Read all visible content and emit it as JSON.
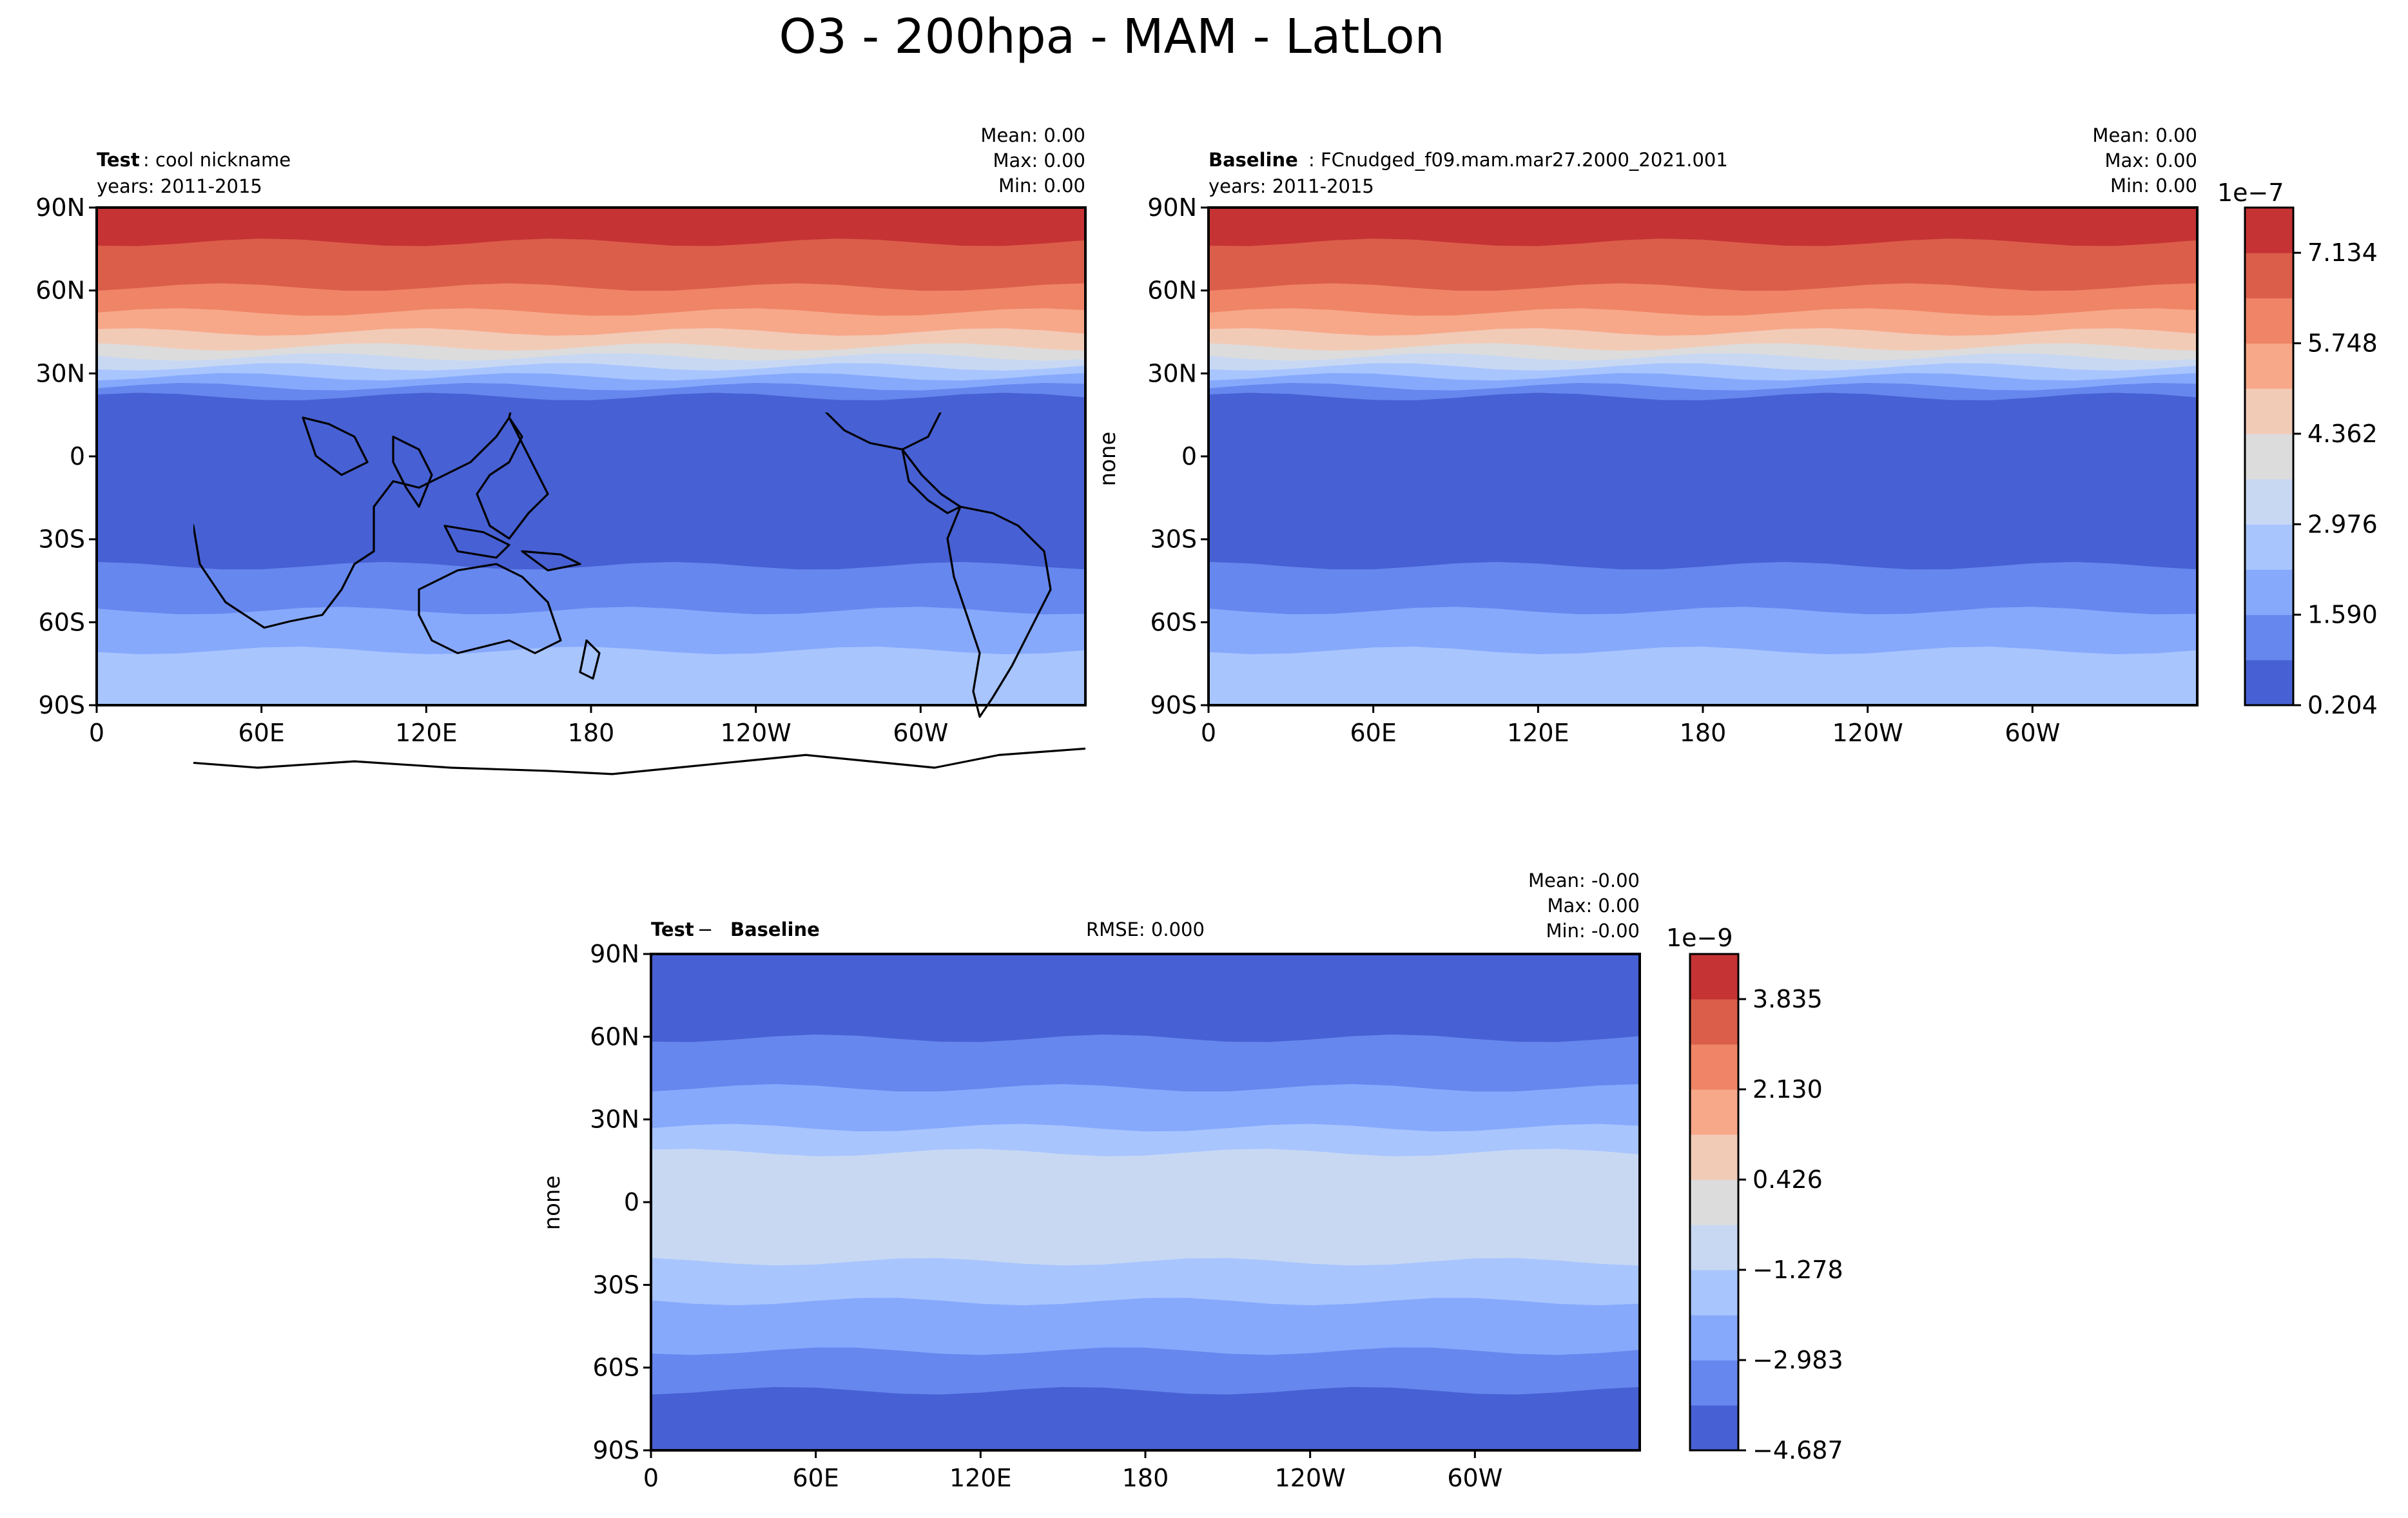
{
  "figure": {
    "title": "O3 - 200hpa - MAM - LatLon"
  },
  "panels": {
    "test": {
      "label_bold": "Test",
      "label_rest": ": cool nickname",
      "years": "years: 2011-2015",
      "stats": {
        "mean": "Mean:  0.00",
        "max": "Max:  0.00",
        "min": "Min:  0.00"
      },
      "ylabel": ""
    },
    "baseline": {
      "label_bold": "Baseline",
      "label_rest": ": FCnudged_f09.mam.mar27.2000_2021.001",
      "years": "years: 2011-2015",
      "stats": {
        "mean": "Mean:  0.00",
        "max": "Max:  0.00",
        "min": "Min:  0.00"
      },
      "ylabel": "none"
    },
    "diff": {
      "label_bold_a": "Test",
      "label_sep": " − ",
      "label_bold_b": "Baseline",
      "rmse": "RMSE: 0.000",
      "stats": {
        "mean": "Mean: -0.00",
        "max": "Max:  0.00",
        "min": "Min: -0.00"
      },
      "ylabel": "none"
    }
  },
  "axis": {
    "lat_ticks": [
      "90N",
      "60N",
      "30N",
      "0",
      "30S",
      "60S",
      "90S"
    ],
    "lon_ticks": [
      "0",
      "60E",
      "120E",
      "180",
      "120W",
      "60W"
    ]
  },
  "colorbars": {
    "main": {
      "exponent": "1e−7",
      "ticks": [
        "7.134",
        "5.748",
        "4.362",
        "2.976",
        "1.590",
        "0.204"
      ],
      "colors": [
        "#4760d3",
        "#6687ee",
        "#87a9fc",
        "#a8c5fe",
        "#c8d8f3",
        "#dcdcdc",
        "#f2cbb7",
        "#f7a889",
        "#ef8466",
        "#db5e4a",
        "#c53334"
      ]
    },
    "diff": {
      "exponent": "1e−9",
      "ticks": [
        "3.835",
        "2.130",
        "0.426",
        "−1.278",
        "−2.983",
        "−4.687"
      ],
      "colors": [
        "#4760d3",
        "#6687ee",
        "#87a9fc",
        "#a8c5fe",
        "#c8d8f3",
        "#dcdcdc",
        "#f2cbb7",
        "#f7a889",
        "#ef8466",
        "#db5e4a",
        "#c53334"
      ]
    }
  },
  "chart_data": [
    {
      "type": "heatmap",
      "title": "Test: cool nickname",
      "x_ticks": [
        "0",
        "60E",
        "120E",
        "180",
        "120W",
        "60W"
      ],
      "y_ticks": [
        "90N",
        "60N",
        "30N",
        "0",
        "30S",
        "60S",
        "90S"
      ],
      "xlim": [
        0,
        360
      ],
      "ylim": [
        -90,
        90
      ],
      "colorbar_range": [
        2.04e-08,
        7.827e-07
      ],
      "stats": {
        "mean": 0.0,
        "max": 0.0,
        "min": 0.0
      }
    },
    {
      "type": "heatmap",
      "title": "Baseline: FCnudged_f09.mam.mar27.2000_2021.001",
      "x_ticks": [
        "0",
        "60E",
        "120E",
        "180",
        "120W",
        "60W"
      ],
      "y_ticks": [
        "90N",
        "60N",
        "30N",
        "0",
        "30S",
        "60S",
        "90S"
      ],
      "xlim": [
        0,
        360
      ],
      "ylim": [
        -90,
        90
      ],
      "colorbar_range": [
        2.04e-08,
        7.827e-07
      ],
      "stats": {
        "mean": 0.0,
        "max": 0.0,
        "min": 0.0
      }
    },
    {
      "type": "heatmap",
      "title": "Test − Baseline",
      "rmse": 0.0,
      "x_ticks": [
        "0",
        "60E",
        "120E",
        "180",
        "120W",
        "60W"
      ],
      "y_ticks": [
        "90N",
        "60N",
        "30N",
        "0",
        "30S",
        "60S",
        "90S"
      ],
      "xlim": [
        0,
        360
      ],
      "ylim": [
        -90,
        90
      ],
      "colorbar_range": [
        -4.687e-09,
        4.687e-09
      ],
      "stats": {
        "mean": -0.0,
        "max": 0.0,
        "min": -0.0
      }
    }
  ]
}
